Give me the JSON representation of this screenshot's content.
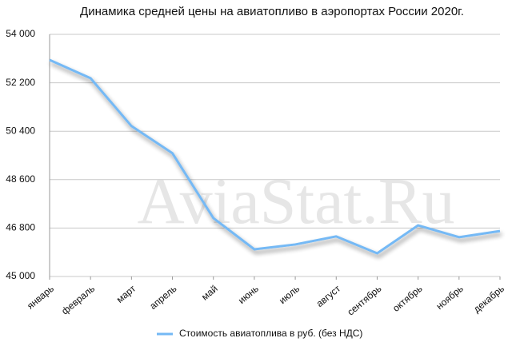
{
  "chart_data": {
    "type": "line",
    "title": "Динамика средней цены на авиатопливо в аэропортах России 2020г.",
    "watermark": "AviaStat.Ru",
    "categories": [
      "январь",
      "февраль",
      "март",
      "апрель",
      "май",
      "июнь",
      "июль",
      "август",
      "сентябрь",
      "октябрь",
      "ноябрь",
      "декабрь"
    ],
    "series": [
      {
        "name": "Стоимость авиатоплива в руб. (без НДС)",
        "color": "#74b9f5",
        "values": [
          53050,
          52370,
          50590,
          49580,
          47170,
          46010,
          46190,
          46490,
          45860,
          46900,
          46460,
          46690
        ]
      }
    ],
    "ylim": [
      45000,
      54000
    ],
    "yticks": [
      {
        "value": 45000,
        "label": "45 000"
      },
      {
        "value": 46800,
        "label": "46 800"
      },
      {
        "value": 48600,
        "label": "48 600"
      },
      {
        "value": 50400,
        "label": "50 400"
      },
      {
        "value": 52200,
        "label": "52 200"
      },
      {
        "value": 54000,
        "label": "54 000"
      }
    ],
    "grid": true,
    "legend": "bottom"
  }
}
